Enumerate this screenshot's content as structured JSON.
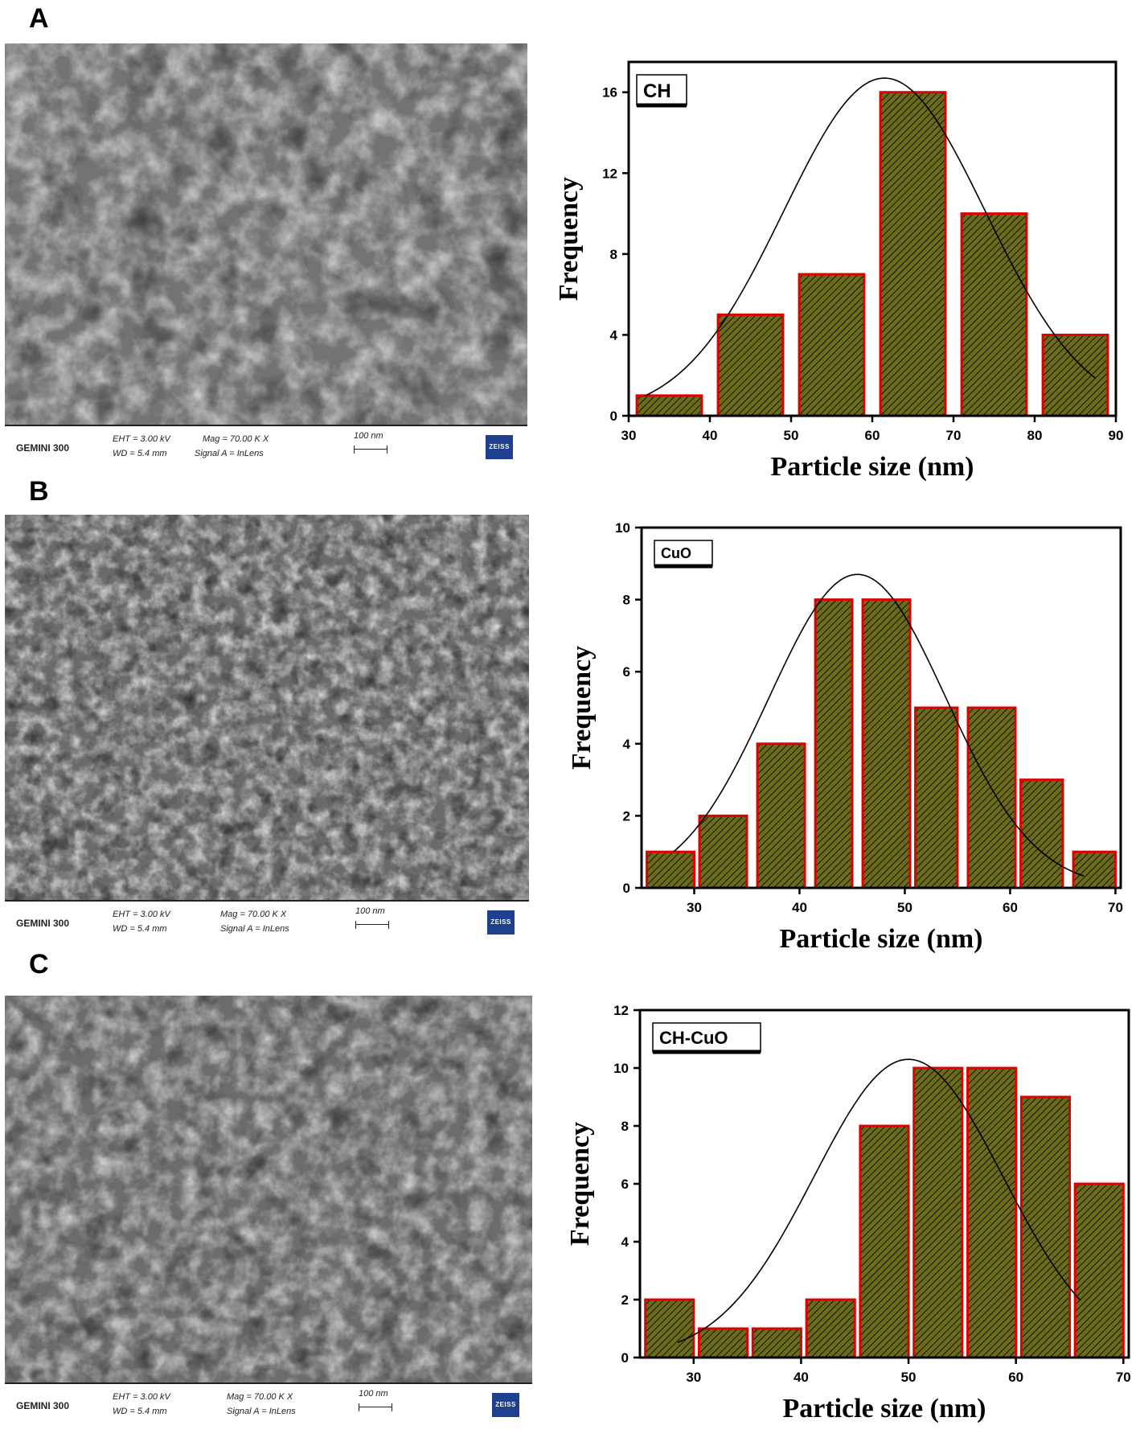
{
  "panels": [
    {
      "letter": "A"
    },
    {
      "letter": "B"
    },
    {
      "letter": "C"
    }
  ],
  "sem_info": {
    "instrument": "GEMINI 300",
    "eht": "EHT = 3.00 kV",
    "wd": "WD = 5.4 mm",
    "mag": "Mag = 70.00 K X",
    "signal": "Signal A = InLens",
    "scale": "100 nm",
    "brand": "ZEISS"
  },
  "colors": {
    "bar_fill": "#6b6b1a",
    "bar_edge": "#e00000",
    "hatch": "#111111",
    "fit_line": "#000000"
  },
  "chart_data": [
    {
      "type": "bar",
      "legend": "CH",
      "xlabel": "Particle size (nm)",
      "ylabel": "Frequency",
      "xlim": [
        30,
        90
      ],
      "ylim": [
        0,
        17.5
      ],
      "xticks": [
        30,
        40,
        50,
        60,
        70,
        80,
        90
      ],
      "yticks": [
        0,
        4,
        8,
        12,
        16
      ],
      "bins": [
        [
          31,
          39
        ],
        [
          41,
          49
        ],
        [
          51,
          59
        ],
        [
          61,
          69
        ],
        [
          71,
          79
        ],
        [
          81,
          89
        ]
      ],
      "values": [
        1,
        5,
        7,
        16,
        10,
        4
      ],
      "fit": {
        "type": "gaussian",
        "mean": 61.5,
        "sigma": 12.4,
        "amplitude": 16.7,
        "x_range": [
          32,
          87.5
        ]
      }
    },
    {
      "type": "bar",
      "legend": "CuO",
      "xlabel": "Particle size (nm)",
      "ylabel": "Frequency",
      "xlim": [
        25,
        70.5
      ],
      "ylim": [
        0,
        10
      ],
      "xticks": [
        30,
        40,
        50,
        60,
        70
      ],
      "yticks": [
        0,
        2,
        4,
        6,
        8,
        10
      ],
      "bins": [
        [
          25.5,
          30
        ],
        [
          30.5,
          35
        ],
        [
          36,
          40.5
        ],
        [
          41.5,
          45
        ],
        [
          46,
          50.5
        ],
        [
          51,
          55
        ],
        [
          56,
          60.5
        ],
        [
          61,
          65
        ],
        [
          66,
          70
        ]
      ],
      "values": [
        1,
        2,
        4,
        8,
        8,
        5,
        5,
        3,
        1
      ],
      "fit": {
        "type": "gaussian",
        "mean": 45.5,
        "sigma": 8.4,
        "amplitude": 8.7,
        "x_range": [
          28,
          67
        ]
      }
    },
    {
      "type": "bar",
      "legend": "CH-CuO",
      "xlabel": "Particle size (nm)",
      "ylabel": "Frequency",
      "xlim": [
        25,
        70.5
      ],
      "ylim": [
        0,
        12
      ],
      "xticks": [
        30,
        40,
        50,
        60,
        70
      ],
      "yticks": [
        0,
        2,
        4,
        6,
        8,
        10,
        12
      ],
      "bins": [
        [
          25.5,
          30
        ],
        [
          30.5,
          35
        ],
        [
          35.5,
          40
        ],
        [
          40.5,
          45
        ],
        [
          45.5,
          50
        ],
        [
          50.5,
          55
        ],
        [
          55.5,
          60
        ],
        [
          60.5,
          65
        ],
        [
          65.5,
          70
        ]
      ],
      "values": [
        2,
        1,
        1,
        2,
        8,
        10,
        10,
        9,
        6
      ],
      "fit": {
        "type": "gaussian",
        "mean": 50,
        "sigma": 8.8,
        "amplitude": 10.3,
        "x_range": [
          28.5,
          66
        ]
      }
    }
  ]
}
